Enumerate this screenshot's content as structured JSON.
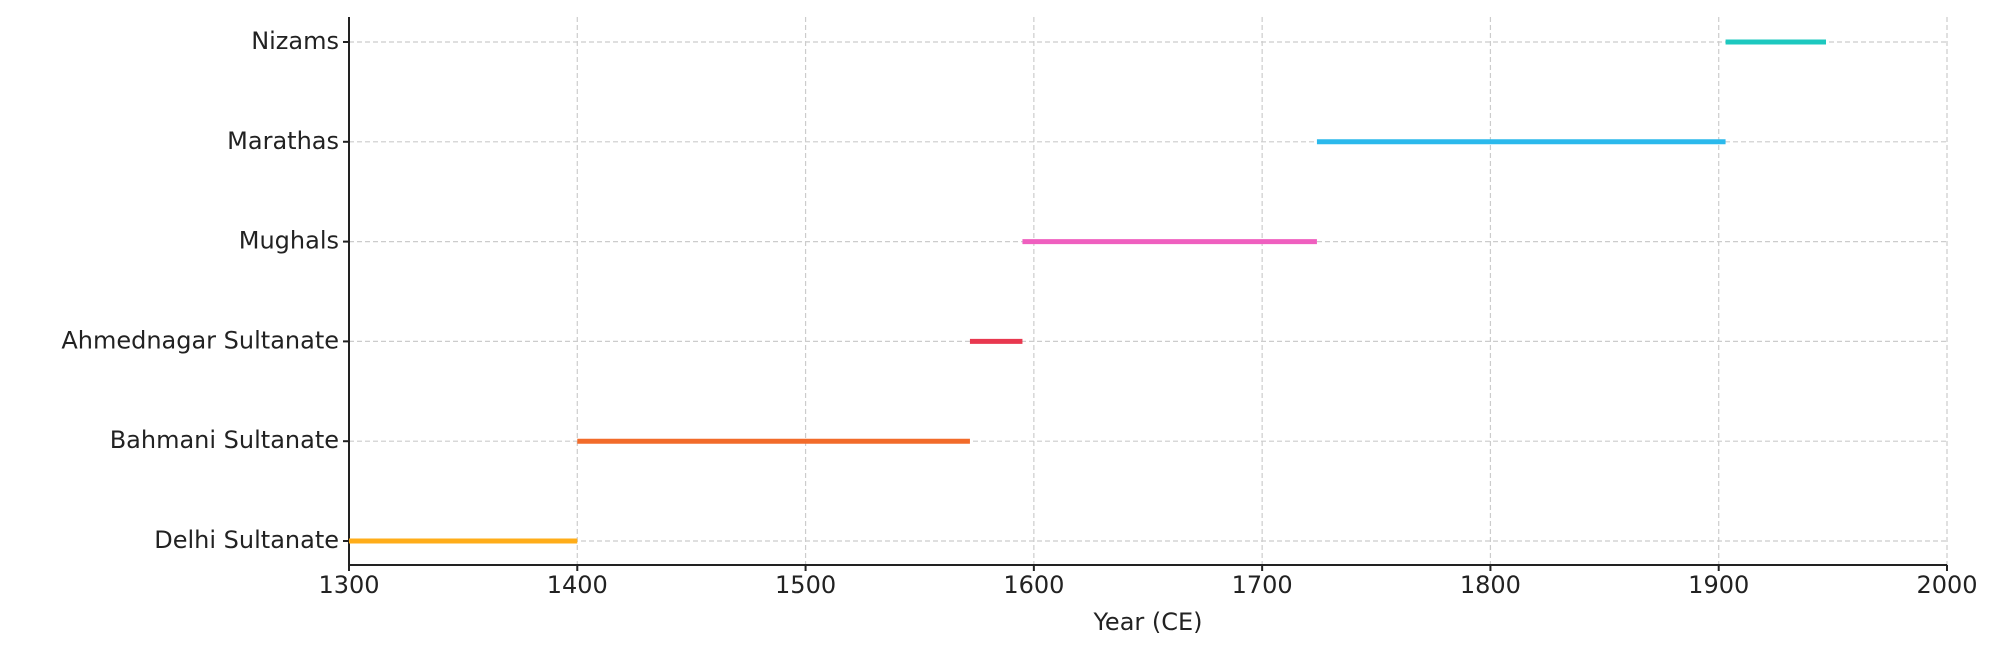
{
  "chart_data": {
    "type": "timeline",
    "categories": [
      "Delhi Sultanate",
      "Bahmani Sultanate",
      "Ahmednagar Sultanate",
      "Mughals",
      "Marathas",
      "Nizams"
    ],
    "starts": [
      1300,
      1400,
      1572,
      1595,
      1724,
      1903
    ],
    "ends": [
      1400,
      1572,
      1595,
      1724,
      1903,
      1947
    ],
    "colors": [
      "#ffad19",
      "#f26b2a",
      "#e8384f",
      "#ef5fbf",
      "#2bb9ec",
      "#1dc8bf"
    ],
    "xlabel": "Year (CE)",
    "xlim": [
      1300,
      2000
    ],
    "xticks": [
      1300,
      1400,
      1500,
      1600,
      1700,
      1800,
      1900,
      2000
    ],
    "grid": true
  }
}
